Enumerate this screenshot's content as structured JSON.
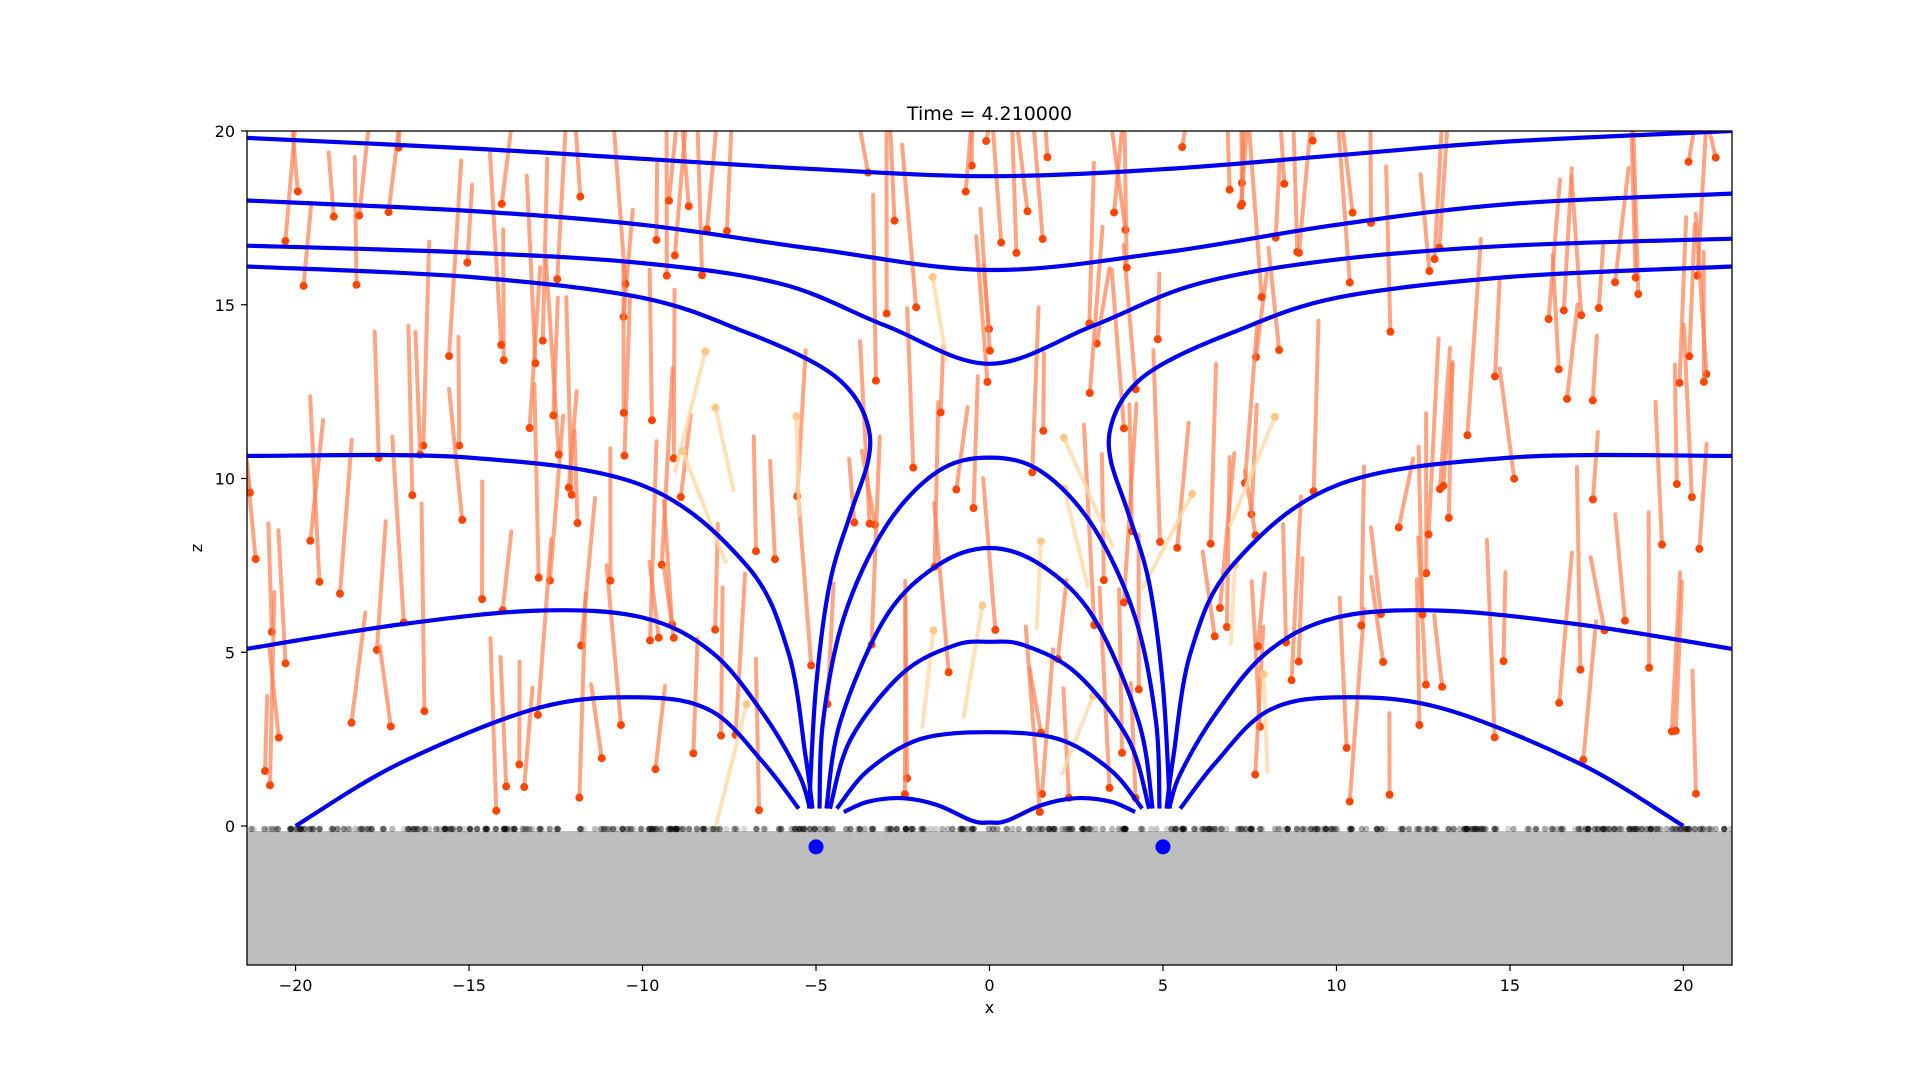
{
  "chart_data": {
    "type": "line",
    "title": "Time = 4.210000",
    "xlabel": "x",
    "ylabel": "z",
    "xlim": [
      -21.4,
      21.4
    ],
    "ylim": [
      -4,
      20
    ],
    "xticks": [
      -20,
      -15,
      -10,
      -5,
      0,
      5,
      10,
      15,
      20
    ],
    "yticks": [
      0,
      5,
      10,
      15,
      20
    ],
    "xtick_labels": [
      "−20",
      "−15",
      "−10",
      "−5",
      "0",
      "5",
      "10",
      "15",
      "20"
    ],
    "ytick_labels": [
      "0",
      "5",
      "10",
      "15",
      "20"
    ],
    "grid": false,
    "legend": "none",
    "ground": {
      "surface_z": 0,
      "color": "#bebebe"
    },
    "sources": [
      {
        "x": -5,
        "z": -0.6,
        "color": "#0000ff"
      },
      {
        "x": 5,
        "z": -0.6,
        "color": "#0000ff"
      }
    ],
    "colors": {
      "field_lines": "#0000ee",
      "trails": "#ff7f50",
      "trail_heads": "#ff4500",
      "faded_trails": "#ffd9a8",
      "surface_particles": "#000000"
    },
    "field_lines": [
      {
        "x": [
          -21.4,
          -15,
          -10,
          -5,
          0,
          5,
          10,
          15,
          21.4
        ],
        "z": [
          19.8,
          19.5,
          19.2,
          18.9,
          18.7,
          18.9,
          19.3,
          19.7,
          20.0
        ]
      },
      {
        "x": [
          -21.4,
          -15,
          -10,
          -5,
          0,
          5,
          10,
          15,
          21.4
        ],
        "z": [
          18.0,
          17.7,
          17.3,
          16.6,
          16.0,
          16.5,
          17.3,
          17.9,
          18.2
        ]
      },
      {
        "x": [
          -21.4,
          -15,
          -10,
          -6,
          -3,
          0,
          3,
          6,
          10,
          15,
          21.4
        ],
        "z": [
          16.7,
          16.5,
          16.2,
          15.6,
          14.4,
          13.3,
          14.4,
          15.6,
          16.3,
          16.7,
          16.9
        ]
      },
      {
        "x": [
          -21.4,
          -15,
          -10,
          -7,
          -5,
          -4,
          -3.5,
          -3.5,
          -4,
          -4.6,
          -5,
          -5.2
        ],
        "z": [
          16.1,
          15.8,
          15.2,
          14.2,
          13.3,
          12.5,
          11.5,
          10.5,
          9.0,
          7.0,
          4.0,
          0.5
        ]
      },
      {
        "x": [
          5.2,
          5,
          4.6,
          4,
          3.5,
          3.5,
          4,
          5,
          7,
          10,
          15,
          21.4
        ],
        "z": [
          0.5,
          4.0,
          7.0,
          9.0,
          10.5,
          11.5,
          12.5,
          13.3,
          14.2,
          15.2,
          15.8,
          16.1
        ]
      },
      {
        "x": [
          -21.4,
          -15,
          -10,
          -7,
          -5.8,
          -5.3,
          -5.1
        ],
        "z": [
          10.65,
          10.6,
          9.8,
          7.5,
          5.0,
          2.0,
          0.5
        ]
      },
      {
        "x": [
          5.1,
          5.3,
          5.8,
          7,
          10,
          15,
          21.4
        ],
        "z": [
          0.5,
          2.0,
          5.0,
          7.5,
          9.8,
          10.6,
          10.65
        ]
      },
      {
        "x": [
          -4.9,
          -4.8,
          -4.2,
          -3,
          -1.5,
          0,
          1.5,
          3,
          4.2,
          4.8,
          4.9
        ],
        "z": [
          0.5,
          3.0,
          6.0,
          8.6,
          10.2,
          10.6,
          10.2,
          8.6,
          6.0,
          3.0,
          0.5
        ]
      },
      {
        "x": [
          -4.7,
          -4.3,
          -3,
          -1.5,
          0,
          1.5,
          3,
          4.3,
          4.7
        ],
        "z": [
          0.5,
          3.0,
          6.0,
          7.5,
          8.0,
          7.5,
          6.0,
          3.0,
          0.5
        ]
      },
      {
        "x": [
          -4.6,
          -4,
          -2.5,
          -1,
          0,
          1,
          2.5,
          4,
          4.6
        ],
        "z": [
          0.5,
          2.5,
          4.4,
          5.2,
          5.3,
          5.2,
          4.4,
          2.5,
          0.5
        ]
      },
      {
        "x": [
          -4.4,
          -3.5,
          -2,
          0,
          2,
          3.5,
          4.4
        ],
        "z": [
          0.5,
          1.6,
          2.5,
          2.7,
          2.5,
          1.6,
          0.5
        ]
      },
      {
        "x": [
          -4.2,
          -3.5,
          -2.5,
          -1.5,
          -0.5,
          0,
          0.5,
          1.5,
          2.5,
          3.5,
          4.2
        ],
        "z": [
          0.4,
          0.7,
          0.8,
          0.6,
          0.15,
          0.1,
          0.15,
          0.6,
          0.8,
          0.7,
          0.4
        ]
      },
      {
        "x": [
          -21.4,
          -17,
          -13,
          -10,
          -8,
          -6.5,
          -5.5,
          -5.2
        ],
        "z": [
          5.1,
          5.8,
          6.2,
          6.0,
          5.0,
          3.2,
          1.5,
          0.6
        ]
      },
      {
        "x": [
          5.2,
          5.5,
          6.5,
          8,
          10,
          13,
          17,
          21.4
        ],
        "z": [
          0.6,
          1.5,
          3.2,
          5.0,
          6.0,
          6.2,
          5.8,
          5.1
        ]
      },
      {
        "x": [
          -20,
          -17,
          -13,
          -10,
          -8,
          -6.5,
          -5.5
        ],
        "z": [
          0.0,
          1.8,
          3.4,
          3.7,
          3.3,
          1.8,
          0.5
        ]
      },
      {
        "x": [
          5.5,
          6.5,
          8,
          10,
          13,
          17,
          20
        ],
        "z": [
          0.5,
          1.8,
          3.3,
          3.7,
          3.4,
          1.8,
          0.0
        ]
      }
    ]
  }
}
